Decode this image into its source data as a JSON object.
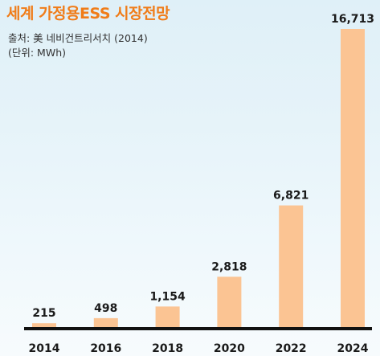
{
  "header": {
    "title": "세계 가정용ESS 시장전망",
    "source": "출처: 美 네비건트리서치 (2014)",
    "unit": "(단위: MWh)"
  },
  "colors": {
    "bar": "#fbc493",
    "title": "#f07c18",
    "axis": "#111111",
    "text": "#1a1a1a"
  },
  "chart_data": {
    "type": "bar",
    "title": "세계 가정용ESS 시장전망",
    "ylabel": "",
    "xlabel": "",
    "unit": "MWh",
    "categories": [
      "2014",
      "2016",
      "2018",
      "2020",
      "2022",
      "2024"
    ],
    "values": [
      215,
      498,
      1154,
      2818,
      6821,
      16713
    ],
    "value_labels": [
      "215",
      "498",
      "1,154",
      "2,818",
      "6,821",
      "16,713"
    ],
    "ylim": [
      0,
      16713
    ],
    "grid": false,
    "legend": "none"
  }
}
